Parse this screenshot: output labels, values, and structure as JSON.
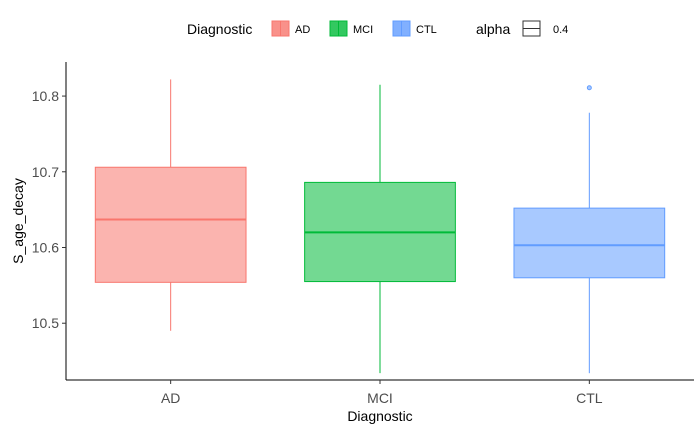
{
  "chart_data": {
    "type": "boxplot",
    "xlabel": "Diagnostic",
    "ylabel": "S_age_decay",
    "categories": [
      "AD",
      "MCI",
      "CTL"
    ],
    "ylim": [
      10.425,
      10.845
    ],
    "yticks": [
      10.5,
      10.6,
      10.7,
      10.8
    ],
    "ytick_labels": [
      "10.5",
      "10.6",
      "10.7",
      "10.8"
    ],
    "grid": false,
    "legend_position": "top",
    "legend": {
      "title": "Diagnostic",
      "items": [
        "AD",
        "MCI",
        "CTL"
      ],
      "alpha_title": "alpha",
      "alpha_value": "0.4"
    },
    "series": [
      {
        "category": "AD",
        "whisker_low": 10.49,
        "q1": 10.554,
        "median": 10.637,
        "q3": 10.706,
        "whisker_high": 10.822,
        "outliers": [],
        "color": "#F8766D"
      },
      {
        "category": "MCI",
        "whisker_low": 10.434,
        "q1": 10.555,
        "median": 10.62,
        "q3": 10.686,
        "whisker_high": 10.815,
        "outliers": [],
        "color": "#00BA38"
      },
      {
        "category": "CTL",
        "whisker_low": 10.434,
        "q1": 10.56,
        "median": 10.603,
        "q3": 10.652,
        "whisker_high": 10.778,
        "outliers": [
          10.811
        ],
        "color": "#619CFF"
      }
    ]
  }
}
